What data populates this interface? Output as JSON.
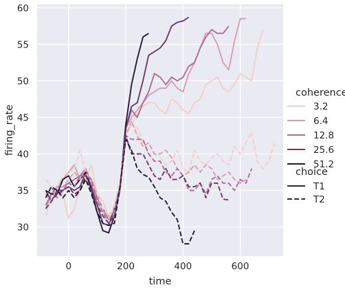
{
  "chart_data": {
    "type": "line",
    "xlabel": "time",
    "ylabel": "firing_rate",
    "xlim": [
      -110,
      750
    ],
    "ylim": [
      26,
      60.5
    ],
    "x_ticks": [
      0,
      200,
      400,
      600
    ],
    "y_ticks": [
      30,
      35,
      40,
      45,
      50,
      55,
      60
    ],
    "grid": true,
    "legend_position": "right",
    "legend": {
      "hue_title": "coherence",
      "hue_entries": [
        {
          "label": "3.2",
          "color": "#f0cfcc"
        },
        {
          "label": "6.4",
          "color": "#d49fb0"
        },
        {
          "label": "12.8",
          "color": "#ad6f96"
        },
        {
          "label": "25.6",
          "color": "#6a3a6a"
        },
        {
          "label": "51.2",
          "color": "#261a33"
        }
      ],
      "style_title": "choice",
      "style_entries": [
        {
          "label": "T1",
          "dash": "solid"
        },
        {
          "label": "T2",
          "dash": "dashed"
        }
      ]
    },
    "series": [
      {
        "coherence": "3.2",
        "choice": "T1",
        "color": "#f0cfcc",
        "dash": "solid",
        "x": [
          -80,
          -60,
          -40,
          -20,
          0,
          20,
          40,
          60,
          80,
          100,
          120,
          140,
          160,
          180,
          200,
          220,
          240,
          260,
          280,
          300,
          320,
          340,
          360,
          380,
          400,
          420,
          440,
          460,
          480,
          500,
          520,
          540,
          560,
          580,
          600,
          620,
          640,
          660,
          680
        ],
        "y": [
          31.5,
          34.5,
          35.5,
          34.5,
          31.2,
          32.5,
          35.5,
          36.5,
          38.5,
          34.5,
          33.5,
          31.5,
          31.5,
          35,
          43,
          44,
          45.5,
          46.5,
          47,
          47,
          46,
          45.5,
          47.5,
          47,
          46,
          45.5,
          47,
          47.5,
          49.5,
          50,
          50.5,
          49,
          48.5,
          49.5,
          51,
          50.5,
          50,
          54.5,
          57
        ]
      },
      {
        "coherence": "6.4",
        "choice": "T1",
        "color": "#d49fb0",
        "dash": "solid",
        "x": [
          -80,
          -60,
          -40,
          -20,
          0,
          20,
          40,
          60,
          80,
          100,
          120,
          140,
          160,
          180,
          200,
          220,
          240,
          260,
          280,
          300,
          320,
          340,
          360,
          380,
          400,
          420,
          440,
          460,
          480,
          500,
          520,
          540,
          560,
          580,
          600,
          620
        ],
        "y": [
          32.5,
          34.5,
          35.5,
          36.5,
          37.5,
          38.5,
          36.5,
          37.5,
          36.5,
          34.5,
          32.5,
          31.5,
          31.5,
          35,
          43.5,
          45,
          46,
          47,
          48,
          48.5,
          49,
          49,
          50,
          49,
          48.5,
          51,
          52.5,
          54.5,
          56.5,
          56.5,
          55,
          52.5,
          51.5,
          55.5,
          58.5,
          58.5
        ]
      },
      {
        "coherence": "12.8",
        "choice": "T1",
        "color": "#ad6f96",
        "dash": "solid",
        "x": [
          -80,
          -60,
          -40,
          -20,
          0,
          20,
          40,
          60,
          80,
          100,
          120,
          140,
          160,
          180,
          200,
          220,
          240,
          260,
          280,
          300,
          320,
          340,
          360,
          380,
          400,
          420,
          440,
          460,
          480,
          500,
          520,
          540,
          560
        ],
        "y": [
          33,
          34.5,
          35.5,
          35.5,
          36,
          36.5,
          37,
          38,
          36,
          34,
          32.5,
          31,
          31.5,
          35.5,
          43.5,
          46,
          45,
          47,
          48.5,
          51,
          50.5,
          49.5,
          50.5,
          50,
          50.5,
          52,
          52.5,
          54.5,
          56,
          57,
          56.5,
          56.5,
          57.5
        ]
      },
      {
        "coherence": "25.6",
        "choice": "T1",
        "color": "#6a3a6a",
        "dash": "solid",
        "x": [
          -80,
          -60,
          -40,
          -20,
          0,
          20,
          40,
          60,
          80,
          100,
          120,
          140,
          160,
          180,
          200,
          220,
          240,
          260,
          280,
          300,
          320,
          340,
          360,
          380,
          400,
          420
        ],
        "y": [
          35,
          33.5,
          35,
          35,
          35.5,
          35,
          35.5,
          37.5,
          35.5,
          33,
          30.5,
          30.2,
          32.5,
          35.5,
          43.5,
          46.5,
          47,
          50,
          53.5,
          54,
          54.5,
          55.5,
          57.5,
          58,
          58.2,
          58.7
        ]
      },
      {
        "coherence": "51.2",
        "choice": "T1",
        "color": "#261a33",
        "dash": "solid",
        "x": [
          -80,
          -60,
          -40,
          -20,
          0,
          20,
          40,
          60,
          80,
          100,
          120,
          140,
          160,
          180,
          200,
          220,
          240,
          260,
          280
        ],
        "y": [
          35,
          34.5,
          34.5,
          36.5,
          37,
          35.5,
          36.5,
          37.5,
          35,
          32,
          29.5,
          29.2,
          31.5,
          35.5,
          44,
          49.5,
          53,
          56,
          56.5
        ]
      },
      {
        "coherence": "3.2",
        "choice": "T2",
        "color": "#f0cfcc",
        "dash": "dashed",
        "x": [
          -80,
          -60,
          -40,
          -20,
          0,
          20,
          40,
          60,
          80,
          100,
          120,
          140,
          160,
          180,
          200,
          220,
          240,
          260,
          280,
          300,
          320,
          340,
          360,
          380,
          400,
          420,
          440,
          460,
          480,
          500,
          520,
          540,
          560,
          580,
          600,
          620,
          640,
          660,
          680,
          700,
          720
        ],
        "y": [
          36.5,
          35.5,
          35.5,
          37,
          37.5,
          38,
          40.5,
          37.5,
          36,
          34.5,
          32.5,
          31.5,
          33,
          36.5,
          42.5,
          44,
          43.5,
          41.5,
          40,
          40,
          39.5,
          38.5,
          39,
          40.5,
          38,
          37.5,
          40.5,
          39,
          38.5,
          39.5,
          40,
          39,
          38.5,
          41,
          40,
          41.5,
          43,
          39,
          38,
          39,
          41.5
        ]
      },
      {
        "coherence": "6.4",
        "choice": "T2",
        "color": "#d49fb0",
        "dash": "dashed",
        "x": [
          -80,
          -60,
          -40,
          -20,
          0,
          20,
          40,
          60,
          80,
          100,
          120,
          140,
          160,
          180,
          200,
          220,
          240,
          260,
          280,
          300,
          320,
          340,
          360,
          380,
          400,
          420,
          440,
          460,
          480,
          500,
          520,
          540,
          560,
          580,
          600,
          620
        ],
        "y": [
          34.5,
          33.5,
          35.5,
          35.5,
          36.5,
          37.5,
          36.5,
          38,
          36,
          33.5,
          32,
          31,
          32.5,
          35.5,
          42.5,
          44.5,
          42.5,
          41,
          41.5,
          40,
          40,
          40.5,
          39.5,
          38,
          37,
          37.5,
          38.5,
          37.5,
          38.5,
          38,
          36.5,
          37,
          37.5,
          36.5,
          36,
          36.5
        ]
      },
      {
        "coherence": "12.8",
        "choice": "T2",
        "color": "#ad6f96",
        "dash": "dashed",
        "x": [
          -80,
          -60,
          -40,
          -20,
          0,
          20,
          40,
          60,
          80,
          100,
          120,
          140,
          160,
          180,
          200,
          220,
          240,
          260,
          280,
          300,
          320,
          340,
          360,
          380,
          400,
          420,
          440,
          460,
          480,
          500,
          520,
          540,
          560,
          580,
          600,
          620,
          640
        ],
        "y": [
          34,
          35.5,
          34,
          35,
          36,
          35.5,
          37,
          37,
          36.5,
          33.5,
          32,
          30.5,
          31.5,
          35.5,
          42.5,
          42,
          42,
          42,
          40,
          39,
          39,
          37.5,
          37,
          38,
          37,
          35,
          35,
          36,
          34.5,
          36.5,
          37,
          36,
          36,
          35,
          36.5,
          36,
          38
        ]
      },
      {
        "coherence": "25.6",
        "choice": "T2",
        "color": "#6a3a6a",
        "dash": "dashed",
        "x": [
          -80,
          -60,
          -40,
          -20,
          0,
          20,
          40,
          60,
          80,
          100,
          120,
          140,
          160,
          180,
          200,
          220,
          240,
          260,
          280,
          300,
          320,
          340,
          360,
          380,
          400,
          420,
          440,
          460,
          480,
          500,
          520,
          540,
          560
        ],
        "y": [
          32.5,
          33.5,
          34.5,
          35,
          35.5,
          34.5,
          35,
          37,
          35,
          33,
          31.5,
          30.5,
          31.5,
          35.5,
          42.5,
          40,
          40,
          40,
          38.5,
          37,
          36.5,
          38,
          36.5,
          36.5,
          37,
          35.5,
          35.5,
          36,
          34,
          36,
          36,
          33.8,
          33.7
        ]
      },
      {
        "coherence": "51.2",
        "choice": "T2",
        "color": "#261a33",
        "dash": "dashed",
        "x": [
          -80,
          -60,
          -40,
          -20,
          0,
          20,
          40,
          60,
          80,
          100,
          120,
          140,
          160,
          180,
          200,
          220,
          240,
          260,
          280,
          300,
          320,
          340,
          360,
          380,
          400,
          420,
          440
        ],
        "y": [
          34,
          35.5,
          35,
          34,
          35,
          34,
          35,
          36.5,
          34.5,
          32,
          30.5,
          30.2,
          30.5,
          35.5,
          42,
          40.5,
          38,
          37.2,
          36.8,
          35.5,
          34,
          33.5,
          32,
          31,
          27.7,
          27.7,
          29.5
        ]
      }
    ]
  }
}
